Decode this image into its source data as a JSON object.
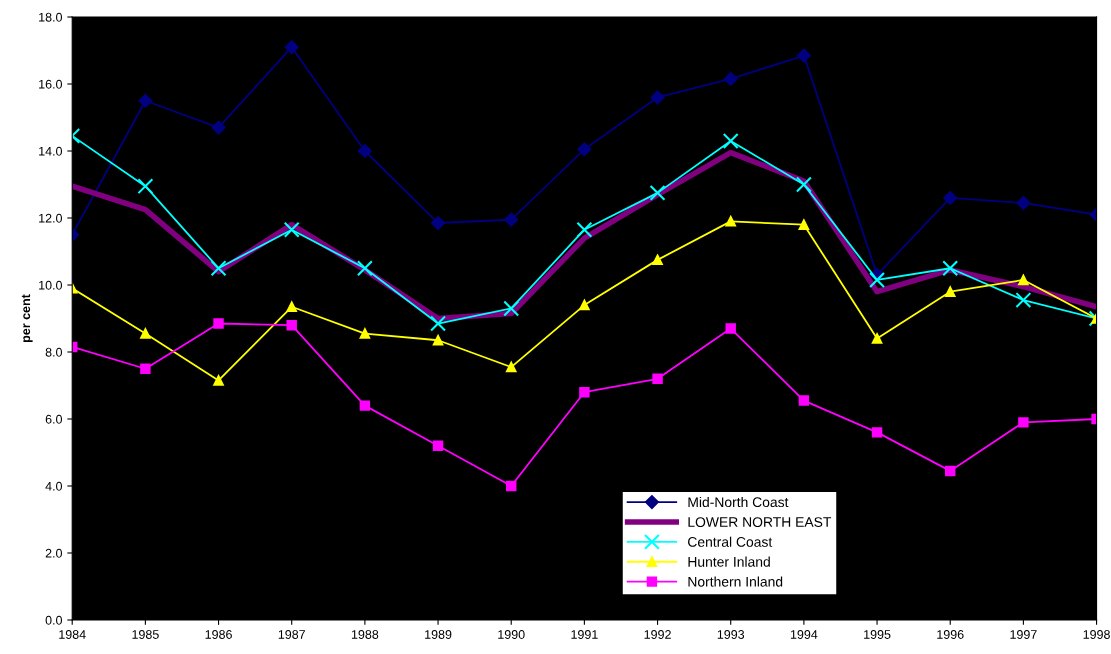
{
  "chart_data": {
    "type": "line",
    "ylabel": "per cent",
    "categories": [
      "1984",
      "1985",
      "1986",
      "1987",
      "1988",
      "1989",
      "1990",
      "1991",
      "1992",
      "1993",
      "1994",
      "1995",
      "1996",
      "1997",
      "1998"
    ],
    "series": [
      {
        "name": "Mid-North Coast",
        "color": "#000080",
        "marker": "diamond",
        "values": [
          11.5,
          15.5,
          14.7,
          17.1,
          14.0,
          11.85,
          11.95,
          14.05,
          15.6,
          16.15,
          16.85,
          10.3,
          12.6,
          12.45,
          12.1
        ]
      },
      {
        "name": "LOWER NORTH EAST",
        "color": "#800080",
        "marker": "none",
        "values": [
          12.95,
          12.25,
          10.4,
          11.8,
          10.45,
          9.0,
          9.15,
          11.4,
          12.7,
          13.95,
          13.1,
          9.8,
          10.45,
          9.95,
          9.35
        ]
      },
      {
        "name": "Central Coast",
        "color": "#00ffff",
        "marker": "cross",
        "values": [
          14.45,
          12.95,
          10.5,
          11.65,
          10.5,
          8.85,
          9.3,
          11.65,
          12.75,
          14.3,
          13.0,
          10.15,
          10.5,
          9.55,
          9.0
        ]
      },
      {
        "name": "Hunter Inland",
        "color": "#ffff00",
        "marker": "triangle",
        "values": [
          9.9,
          8.55,
          7.15,
          9.35,
          8.55,
          8.35,
          7.55,
          9.4,
          10.75,
          11.9,
          11.8,
          8.4,
          9.8,
          10.15,
          9.0
        ]
      },
      {
        "name": "Northern Inland",
        "color": "#ff00ff",
        "marker": "square",
        "values": [
          8.15,
          7.5,
          8.85,
          8.8,
          6.4,
          5.2,
          4.0,
          6.8,
          7.2,
          8.7,
          6.55,
          5.6,
          4.45,
          5.9,
          6.0
        ]
      }
    ],
    "ylim": [
      0,
      18
    ],
    "yticks": [
      {
        "value": 0,
        "label": "0.0"
      },
      {
        "value": 2,
        "label": "2.0"
      },
      {
        "value": 4,
        "label": "4.0"
      },
      {
        "value": 6,
        "label": "6.0"
      },
      {
        "value": 8,
        "label": "8.0"
      },
      {
        "value": 10,
        "label": "10.0"
      },
      {
        "value": 12,
        "label": "12.0"
      },
      {
        "value": 14,
        "label": "14.0"
      },
      {
        "value": 16,
        "label": "16.0"
      },
      {
        "value": 18,
        "label": "18.0"
      }
    ],
    "grid": false,
    "legend": "bottom"
  }
}
